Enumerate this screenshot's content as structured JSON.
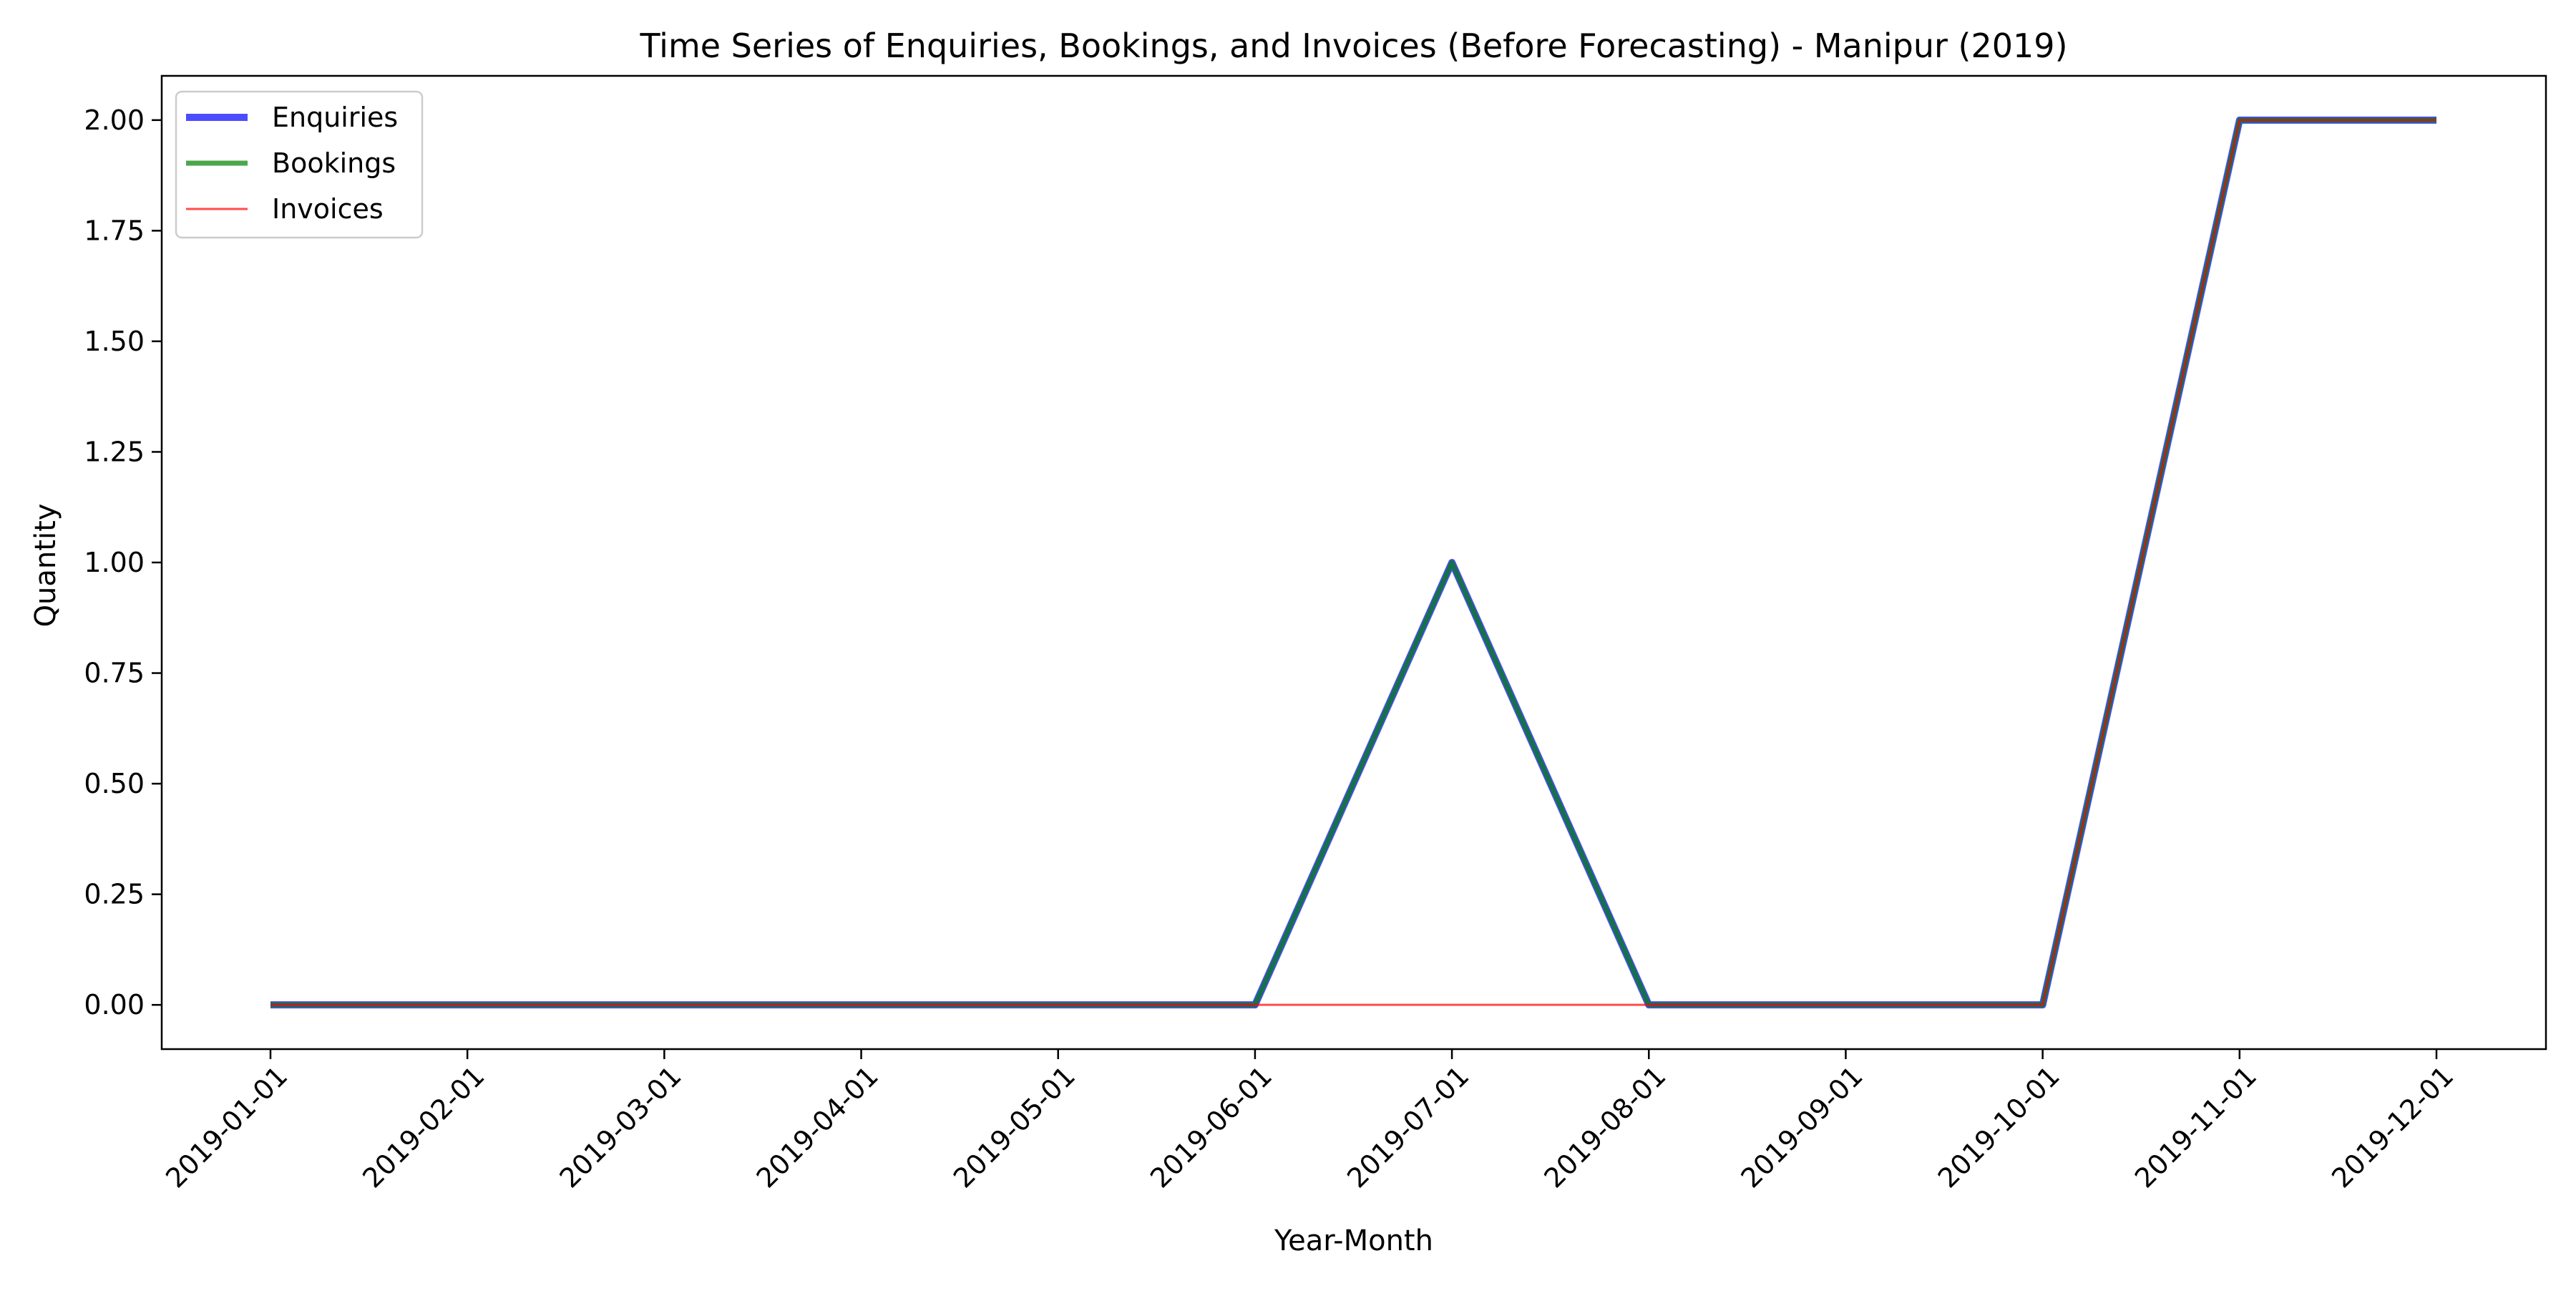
{
  "chart_data": {
    "type": "line",
    "title": "Time Series of Enquiries, Bookings, and Invoices (Before Forecasting) - Manipur (2019)",
    "xlabel": "Year-Month",
    "ylabel": "Quantity",
    "categories": [
      "2019-01-01",
      "2019-02-01",
      "2019-03-01",
      "2019-04-01",
      "2019-05-01",
      "2019-06-01",
      "2019-07-01",
      "2019-08-01",
      "2019-09-01",
      "2019-10-01",
      "2019-11-01",
      "2019-12-01"
    ],
    "yticks": [
      "0.00",
      "0.25",
      "0.50",
      "0.75",
      "1.00",
      "1.25",
      "1.50",
      "1.75",
      "2.00"
    ],
    "ylim": [
      -0.1,
      2.1
    ],
    "grid": false,
    "legend_position": "top-left",
    "series": [
      {
        "name": "Enquiries",
        "color": "#0000ff",
        "values": [
          0,
          0,
          0,
          0,
          0,
          0,
          1,
          0,
          0,
          0,
          2,
          2
        ]
      },
      {
        "name": "Bookings",
        "color": "#008000",
        "values": [
          0,
          0,
          0,
          0,
          0,
          0,
          1,
          0,
          0,
          0,
          2,
          2
        ]
      },
      {
        "name": "Invoices",
        "color": "#ff0000",
        "values": [
          0,
          0,
          0,
          0,
          0,
          0,
          0,
          0,
          0,
          0,
          2,
          2
        ]
      }
    ]
  }
}
